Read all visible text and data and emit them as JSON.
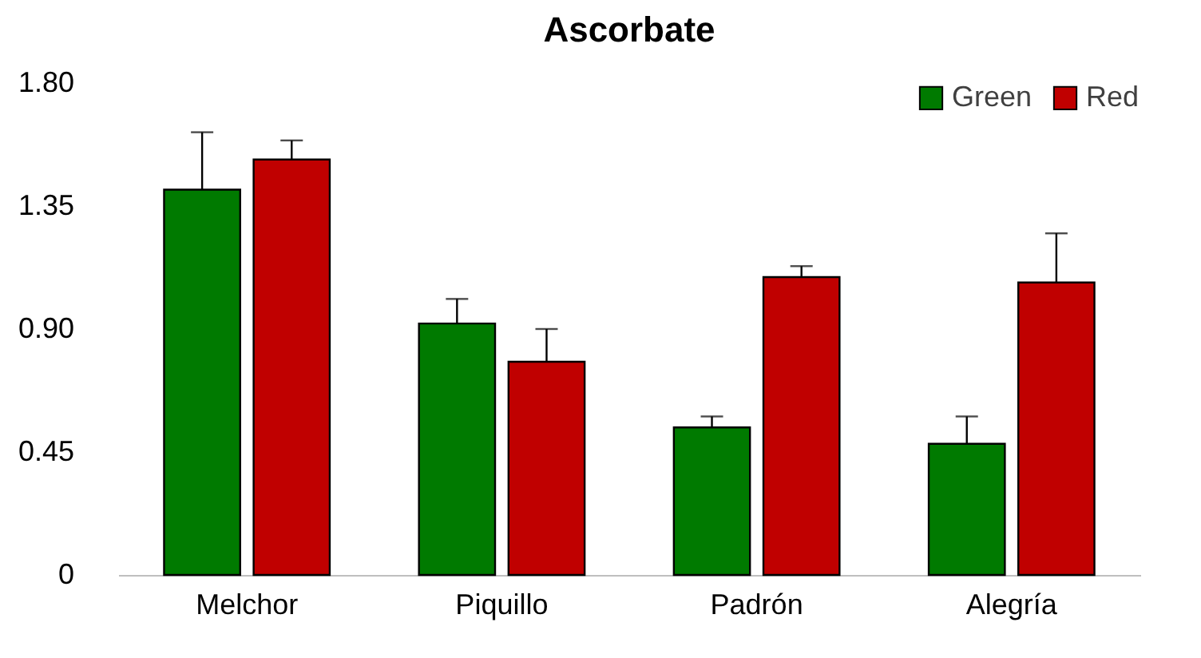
{
  "chart_data": {
    "type": "bar",
    "title": "Ascorbate",
    "categories": [
      "Melchor",
      "Piquillo",
      "Padrón",
      "Alegría"
    ],
    "series": [
      {
        "name": "Green",
        "color": "#007a00",
        "values": [
          1.41,
          0.92,
          0.54,
          0.48
        ],
        "errors": [
          [
            1.41,
            1.62
          ],
          [
            0.92,
            1.01
          ],
          [
            0.54,
            0.58
          ],
          [
            0.48,
            0.58
          ]
        ]
      },
      {
        "name": "Red",
        "color": "#c00000",
        "values": [
          1.52,
          0.78,
          1.09,
          1.07
        ],
        "errors": [
          [
            1.52,
            1.59
          ],
          [
            0.78,
            0.9
          ],
          [
            1.09,
            1.13
          ],
          [
            1.07,
            1.25
          ]
        ]
      }
    ],
    "ylim": [
      0,
      1.8
    ],
    "yticks": [
      0,
      {
        "value": 0.45,
        "label": "0.45"
      },
      {
        "value": 0.9,
        "label": "0.90"
      },
      {
        "value": 1.35,
        "label": "1.35"
      },
      {
        "value": 1.8,
        "label": "1.80"
      }
    ],
    "grid": false,
    "legend": "top right"
  }
}
